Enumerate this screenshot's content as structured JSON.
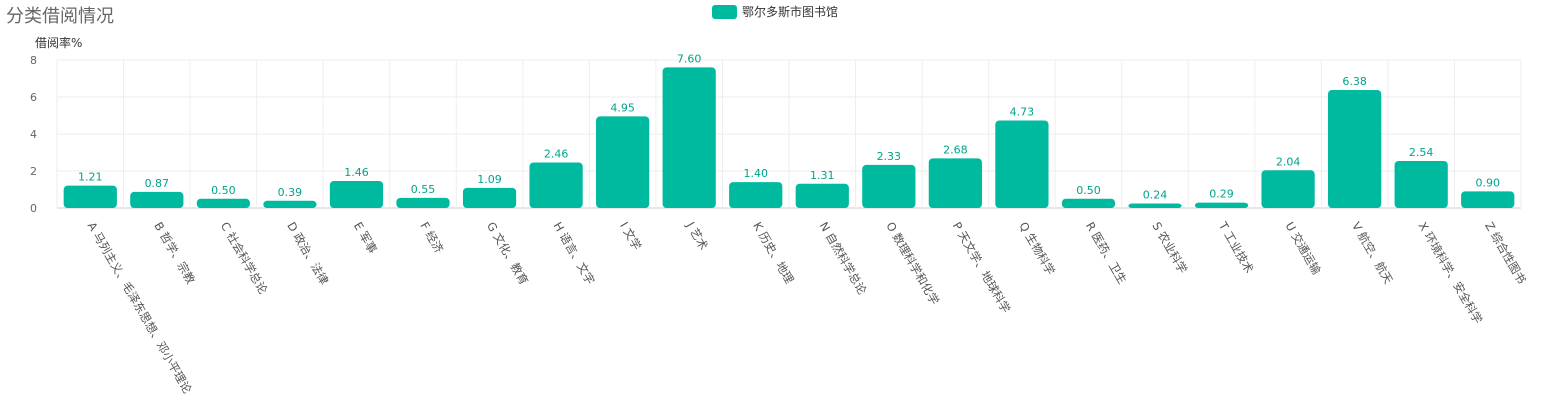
{
  "title": "分类借阅情况",
  "legend_label": "鄂尔多斯市图书馆",
  "colors": {
    "bar": "#00BAA0",
    "label": "#00A38C",
    "grid": "#EEEEEE",
    "axis": "#CCCCCC"
  },
  "chart_data": {
    "type": "bar",
    "title": "分类借阅情况",
    "ylabel": "借阅率%",
    "xlabel": "",
    "ylim": [
      0,
      8
    ],
    "yticks": [
      0,
      2,
      4,
      6,
      8
    ],
    "grid": true,
    "legend": "top-center",
    "categories": [
      "A 马列主义、毛泽东思想、邓小平理论",
      "B 哲学、宗教",
      "C 社会科学总论",
      "D 政治、法律",
      "E 军事",
      "F 经济",
      "G 文化、教育",
      "H 语言、文字",
      "I 文学",
      "J 艺术",
      "K 历史、地理",
      "N 自然科学总论",
      "O 数理科学和化学",
      "P 天文学、地球科学",
      "Q 生物科学",
      "R 医药、卫生",
      "S 农业科学",
      "T 工业技术",
      "U 交通运输",
      "V 航空、航天",
      "X 环境科学、安全科学",
      "Z 综合性图书"
    ],
    "series": [
      {
        "name": "鄂尔多斯市图书馆",
        "values": [
          1.21,
          0.87,
          0.5,
          0.39,
          1.46,
          0.55,
          1.09,
          2.46,
          4.95,
          7.6,
          1.4,
          1.31,
          2.33,
          2.68,
          4.73,
          0.5,
          0.24,
          0.29,
          2.04,
          6.38,
          2.54,
          0.9
        ]
      }
    ]
  }
}
